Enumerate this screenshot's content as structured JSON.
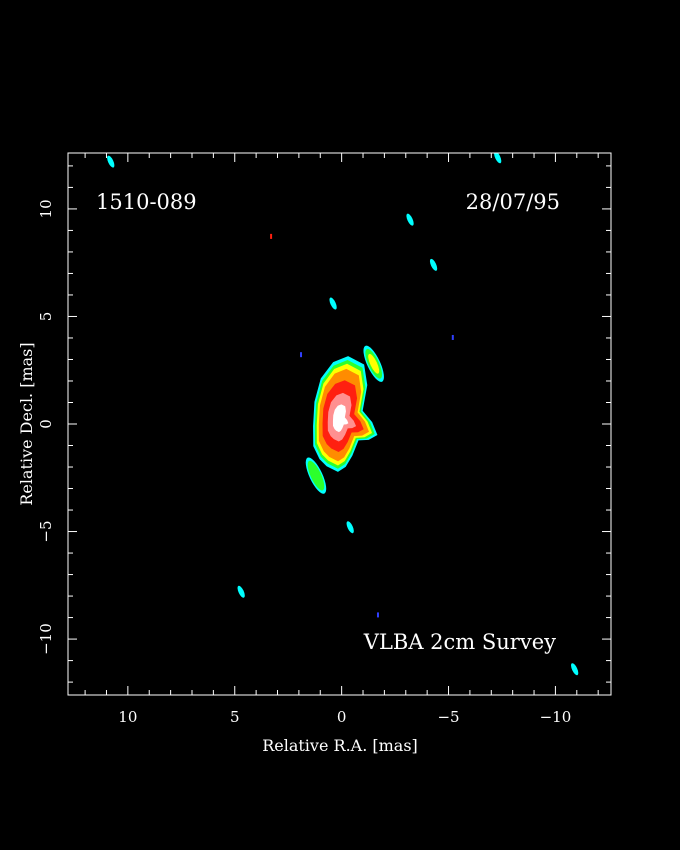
{
  "chart_data": {
    "type": "heatmap",
    "source_name": "1510-089",
    "date": "28/07/95",
    "survey": "VLBA 2cm Survey",
    "xlabel": "Relative R.A. [mas]",
    "ylabel": "Relative Decl. [mas]",
    "xlim": [
      12.8,
      -12.6
    ],
    "ylim": [
      -12.6,
      12.6
    ],
    "x_ticks": [
      10,
      5,
      0,
      -5,
      -10
    ],
    "y_ticks": [
      10,
      5,
      0,
      -5,
      -10
    ],
    "x_tick_labels": [
      "10",
      "5",
      "0",
      "−5",
      "−10"
    ],
    "y_tick_labels": [
      "10",
      "5",
      "0",
      "−5",
      "−10"
    ],
    "grid": false,
    "background": "#000000",
    "frame_color": "#ffffff",
    "colors": {
      "blue": "#3040ff",
      "cyan": "#00ffff",
      "green": "#2cff2c",
      "yellow": "#ffff00",
      "orange": "#ff8c00",
      "red": "#ff2010",
      "pink": "#ff9090",
      "white": "#ffffff"
    },
    "core": {
      "ra": 0.1,
      "dec": 0.3,
      "peak_color": "white",
      "levels": [
        "cyan",
        "green",
        "yellow",
        "orange",
        "red",
        "pink",
        "white"
      ]
    },
    "components": [
      {
        "ra": -1.5,
        "dec": 2.8,
        "levels": [
          "cyan",
          "green",
          "yellow"
        ]
      },
      {
        "ra": 1.2,
        "dec": -2.4,
        "levels": [
          "cyan",
          "green"
        ]
      },
      {
        "ra": 0.4,
        "dec": 5.6,
        "levels": [
          "cyan"
        ]
      },
      {
        "ra": -0.4,
        "dec": -4.8,
        "levels": [
          "cyan"
        ]
      },
      {
        "ra": -4.3,
        "dec": 7.4,
        "levels": [
          "cyan"
        ]
      },
      {
        "ra": -3.2,
        "dec": 9.5,
        "levels": [
          "cyan"
        ]
      },
      {
        "ra": 10.8,
        "dec": 12.2,
        "levels": [
          "cyan"
        ]
      },
      {
        "ra": -7.3,
        "dec": 12.4,
        "levels": [
          "cyan"
        ]
      },
      {
        "ra": 4.7,
        "dec": -7.8,
        "levels": [
          "cyan"
        ]
      },
      {
        "ra": -10.9,
        "dec": -11.4,
        "levels": [
          "cyan"
        ]
      },
      {
        "ra": -5.2,
        "dec": 4.0,
        "levels": [
          "blue"
        ]
      },
      {
        "ra": 1.9,
        "dec": 3.2,
        "levels": [
          "blue"
        ]
      },
      {
        "ra": -1.7,
        "dec": -8.9,
        "levels": [
          "blue"
        ]
      },
      {
        "ra": 3.3,
        "dec": 8.7,
        "levels": [
          "red"
        ]
      }
    ]
  }
}
